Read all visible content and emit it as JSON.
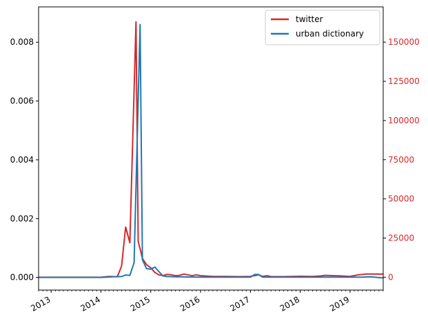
{
  "chart_data": {
    "type": "line",
    "grid": false,
    "legend_placement": "top-right",
    "x_axis": {
      "type": "date",
      "range": [
        "2012-10-01",
        "2019-09-01"
      ],
      "ticks": [
        {
          "date": "2013-01-01",
          "label": "2013"
        },
        {
          "date": "2014-01-01",
          "label": "2014"
        },
        {
          "date": "2015-01-01",
          "label": "2015"
        },
        {
          "date": "2016-01-01",
          "label": "2016"
        },
        {
          "date": "2017-01-01",
          "label": "2017"
        },
        {
          "date": "2018-01-01",
          "label": "2018"
        },
        {
          "date": "2019-01-01",
          "label": "2019"
        }
      ]
    },
    "y_left": {
      "range": [
        -0.00043,
        0.0092
      ],
      "ticks": [
        "0.000",
        "0.002",
        "0.004",
        "0.006",
        "0.008"
      ],
      "tick_values": [
        0,
        0.002,
        0.004,
        0.006,
        0.008
      ]
    },
    "y_right": {
      "range": [
        -8200,
        172500
      ],
      "ticks": [
        "0",
        "25000",
        "50000",
        "75000",
        "100000",
        "125000",
        "150000"
      ],
      "tick_values": [
        0,
        25000,
        50000,
        75000,
        100000,
        125000,
        150000
      ],
      "color": "#d62728"
    },
    "series": [
      {
        "name": "twitter",
        "axis": "right",
        "color": "#d62728",
        "points": [
          [
            "2012-10-01",
            0
          ],
          [
            "2013-01-01",
            0
          ],
          [
            "2013-04-01",
            0
          ],
          [
            "2013-07-01",
            0
          ],
          [
            "2013-10-01",
            0
          ],
          [
            "2014-01-01",
            0
          ],
          [
            "2014-03-01",
            500
          ],
          [
            "2014-05-01",
            300
          ],
          [
            "2014-06-01",
            7000
          ],
          [
            "2014-07-01",
            32000
          ],
          [
            "2014-08-01",
            22000
          ],
          [
            "2014-09-15",
            163000
          ],
          [
            "2014-10-01",
            23000
          ],
          [
            "2014-11-01",
            12000
          ],
          [
            "2014-12-01",
            8000
          ],
          [
            "2015-01-01",
            6000
          ],
          [
            "2015-02-01",
            3000
          ],
          [
            "2015-03-01",
            1500
          ],
          [
            "2015-04-01",
            1000
          ],
          [
            "2015-05-01",
            1800
          ],
          [
            "2015-06-01",
            1500
          ],
          [
            "2015-07-01",
            1000
          ],
          [
            "2015-08-01",
            1200
          ],
          [
            "2015-09-01",
            2000
          ],
          [
            "2015-10-01",
            1500
          ],
          [
            "2015-11-01",
            1000
          ],
          [
            "2015-12-01",
            1500
          ],
          [
            "2016-01-01",
            1000
          ],
          [
            "2016-04-01",
            500
          ],
          [
            "2016-07-01",
            500
          ],
          [
            "2016-10-01",
            400
          ],
          [
            "2017-01-01",
            500
          ],
          [
            "2017-03-01",
            1500
          ],
          [
            "2017-04-01",
            500
          ],
          [
            "2017-05-01",
            1000
          ],
          [
            "2017-06-01",
            400
          ],
          [
            "2017-09-01",
            400
          ],
          [
            "2018-01-01",
            600
          ],
          [
            "2018-04-01",
            500
          ],
          [
            "2018-06-01",
            800
          ],
          [
            "2018-07-01",
            1200
          ],
          [
            "2018-09-01",
            1000
          ],
          [
            "2018-11-01",
            800
          ],
          [
            "2019-01-01",
            500
          ],
          [
            "2019-03-01",
            1500
          ],
          [
            "2019-05-01",
            2000
          ],
          [
            "2019-09-01",
            2000
          ]
        ]
      },
      {
        "name": "urban dictionary",
        "axis": "left",
        "color": "#1f77b4",
        "points": [
          [
            "2012-10-01",
            0
          ],
          [
            "2013-06-01",
            0
          ],
          [
            "2014-01-01",
            0
          ],
          [
            "2014-04-01",
            2e-05
          ],
          [
            "2014-06-01",
            3e-05
          ],
          [
            "2014-07-01",
            8e-05
          ],
          [
            "2014-08-01",
            7e-05
          ],
          [
            "2014-09-01",
            0.0005
          ],
          [
            "2014-10-15",
            0.0086
          ],
          [
            "2014-11-01",
            0.0006
          ],
          [
            "2014-12-01",
            0.0003
          ],
          [
            "2015-01-01",
            0.00028
          ],
          [
            "2015-02-01",
            0.00035
          ],
          [
            "2015-03-01",
            0.0002
          ],
          [
            "2015-04-01",
            5e-05
          ],
          [
            "2015-05-01",
            3e-05
          ],
          [
            "2015-07-01",
            2e-05
          ],
          [
            "2016-01-01",
            1e-05
          ],
          [
            "2016-06-01",
            1e-05
          ],
          [
            "2017-01-01",
            1e-05
          ],
          [
            "2017-02-01",
            0.0001
          ],
          [
            "2017-03-01",
            0.0001
          ],
          [
            "2017-04-01",
            1e-05
          ],
          [
            "2017-10-01",
            1e-05
          ],
          [
            "2018-06-01",
            1e-05
          ],
          [
            "2019-01-01",
            1e-05
          ],
          [
            "2019-04-01",
            1e-05
          ],
          [
            "2019-06-01",
            2e-05
          ],
          [
            "2019-09-01",
            -2e-05
          ]
        ]
      }
    ]
  }
}
